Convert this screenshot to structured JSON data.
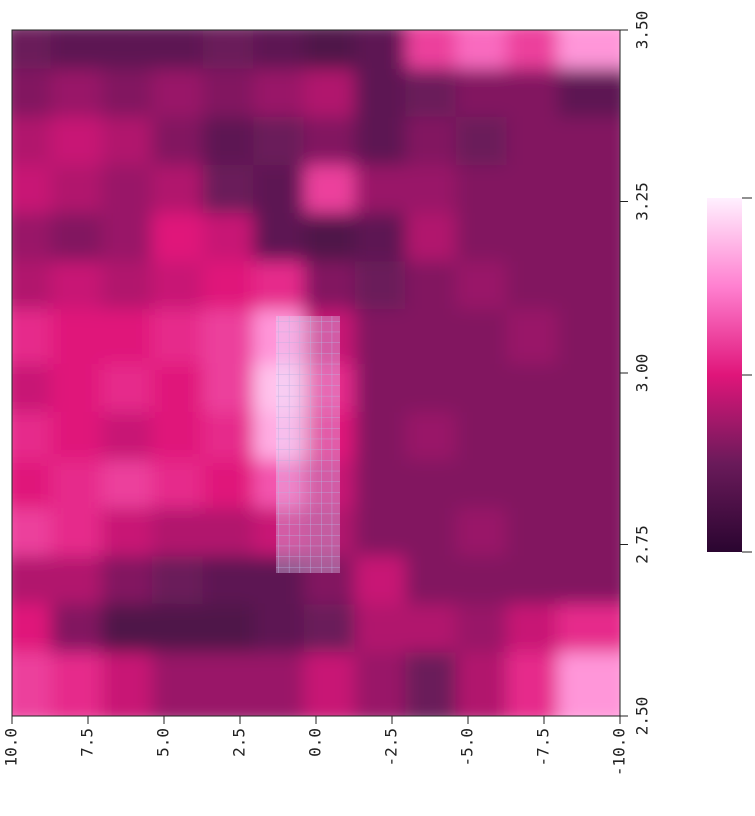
{
  "chart_data": {
    "type": "heatmap",
    "xlim": [
      10,
      -10
    ],
    "ylim": [
      2.5,
      3.5
    ],
    "xticks": [
      {
        "value": 10,
        "label": "10.0"
      },
      7.5,
      {
        "value": 5,
        "label": "5.0"
      },
      2.5,
      {
        "value": 0,
        "label": "0.0"
      },
      -2.5,
      {
        "value": -5,
        "label": "-5.0"
      },
      -7.5,
      {
        "value": -10,
        "label": "-10.0"
      }
    ],
    "yticks": [
      {
        "value": 2.5,
        "label": "2.50"
      },
      2.75,
      {
        "value": 3,
        "label": "3.00"
      },
      3.25,
      {
        "value": 3.5,
        "label": "3.50"
      }
    ],
    "x": [
      9.17,
      7.5,
      5.83,
      4.17,
      2.5,
      0.83,
      -0.83,
      -2.5,
      -4.17,
      -5.83,
      -7.5,
      -9.17
    ],
    "y": [
      3.46,
      3.39,
      3.32,
      3.25,
      3.18,
      3.11,
      3.04,
      2.96,
      2.89,
      2.82,
      2.75,
      2.68,
      2.61,
      2.54
    ],
    "z": [
      [
        0.25,
        0.2,
        0.2,
        0.2,
        0.25,
        0.2,
        0.15,
        0.2,
        0.6,
        0.7,
        0.6,
        0.8
      ],
      [
        0.3,
        0.35,
        0.3,
        0.35,
        0.3,
        0.35,
        0.4,
        0.2,
        0.25,
        0.3,
        0.3,
        0.2
      ],
      [
        0.4,
        0.45,
        0.4,
        0.3,
        0.2,
        0.25,
        0.3,
        0.2,
        0.3,
        0.25,
        0.3,
        0.3
      ],
      [
        0.45,
        0.4,
        0.35,
        0.4,
        0.25,
        0.2,
        0.6,
        0.35,
        0.35,
        0.3,
        0.3,
        0.3
      ],
      [
        0.35,
        0.3,
        0.35,
        0.5,
        0.45,
        0.2,
        0.15,
        0.2,
        0.4,
        0.3,
        0.3,
        0.3
      ],
      [
        0.4,
        0.45,
        0.4,
        0.45,
        0.5,
        0.55,
        0.3,
        0.25,
        0.3,
        0.35,
        0.3,
        0.3
      ],
      [
        0.55,
        0.5,
        0.5,
        0.55,
        0.6,
        0.8,
        0.45,
        0.3,
        0.3,
        0.3,
        0.35,
        0.3
      ],
      [
        0.45,
        0.5,
        0.55,
        0.5,
        0.6,
        0.9,
        0.55,
        0.3,
        0.3,
        0.3,
        0.3,
        0.3
      ],
      [
        0.55,
        0.5,
        0.45,
        0.5,
        0.55,
        0.85,
        0.5,
        0.3,
        0.35,
        0.3,
        0.3,
        0.3
      ],
      [
        0.5,
        0.55,
        0.6,
        0.55,
        0.5,
        0.65,
        0.45,
        0.3,
        0.3,
        0.3,
        0.3,
        0.3
      ],
      [
        0.6,
        0.55,
        0.45,
        0.4,
        0.4,
        0.45,
        0.4,
        0.3,
        0.3,
        0.35,
        0.3,
        0.3
      ],
      [
        0.4,
        0.4,
        0.3,
        0.25,
        0.2,
        0.2,
        0.3,
        0.45,
        0.3,
        0.3,
        0.3,
        0.3
      ],
      [
        0.5,
        0.3,
        0.15,
        0.15,
        0.15,
        0.2,
        0.25,
        0.4,
        0.4,
        0.35,
        0.45,
        0.55
      ],
      [
        0.6,
        0.55,
        0.45,
        0.35,
        0.35,
        0.35,
        0.45,
        0.35,
        0.25,
        0.4,
        0.55,
        0.8
      ]
    ],
    "zlim": [
      0,
      1
    ],
    "zticks": [
      0,
      0.5,
      1
    ],
    "colormap": [
      "#2a0530",
      "#6a1a5a",
      "#e0157a",
      "#ff80d0",
      "#fff0ff"
    ]
  }
}
